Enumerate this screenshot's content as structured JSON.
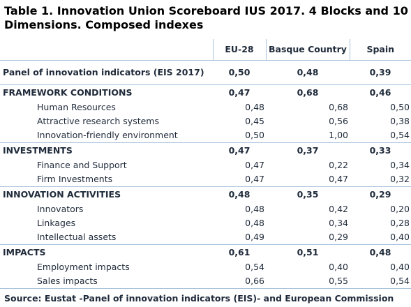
{
  "title": "Table 1. Innovation Union Scoreboard IUS 2017. 4 Blocks and 10 Dimensions. Composed indexes",
  "columns": [
    "EU-28",
    "Basque Country",
    "Spain"
  ],
  "panel": {
    "label": "Panel of innovation indicators (EIS 2017)",
    "values": [
      "0,50",
      "0,48",
      "0,39"
    ]
  },
  "blocks": [
    {
      "label": "FRAMEWORK CONDITIONS",
      "values": [
        "0,47",
        "0,68",
        "0,46"
      ],
      "rows": [
        {
          "label": "Human Resources",
          "values": [
            "0,48",
            "0,68",
            "0,50"
          ]
        },
        {
          "label": "Attractive research systems",
          "values": [
            "0,45",
            "0,56",
            "0,38"
          ]
        },
        {
          "label": "Innovation-friendly environment",
          "values": [
            "0,50",
            "1,00",
            "0,54"
          ]
        }
      ]
    },
    {
      "label": "INVESTMENTS",
      "values": [
        "0,47",
        "0,37",
        "0,33"
      ],
      "rows": [
        {
          "label": "Finance and Support",
          "values": [
            "0,47",
            "0,22",
            "0,34"
          ]
        },
        {
          "label": "Firm Investments",
          "values": [
            "0,47",
            "0,47",
            "0,32"
          ]
        }
      ]
    },
    {
      "label": "INNOVATION ACTIVITIES",
      "values": [
        "0,48",
        "0,35",
        "0,29"
      ],
      "rows": [
        {
          "label": "Innovators",
          "values": [
            "0,48",
            "0,42",
            "0,20"
          ]
        },
        {
          "label": "Linkages",
          "values": [
            "0,48",
            "0,34",
            "0,28"
          ]
        },
        {
          "label": "Intellectual assets",
          "values": [
            "0,49",
            "0,29",
            "0,40"
          ]
        }
      ]
    },
    {
      "label": "IMPACTS",
      "values": [
        "0,61",
        "0,51",
        "0,48"
      ],
      "rows": [
        {
          "label": "Employment impacts",
          "values": [
            "0,54",
            "0,40",
            "0,40"
          ]
        },
        {
          "label": "Sales impacts",
          "values": [
            "0,66",
            "0,55",
            "0,54"
          ]
        }
      ]
    }
  ],
  "source": "Source: Eustat -Panel of innovation indicators (EIS)- and European Commission"
}
